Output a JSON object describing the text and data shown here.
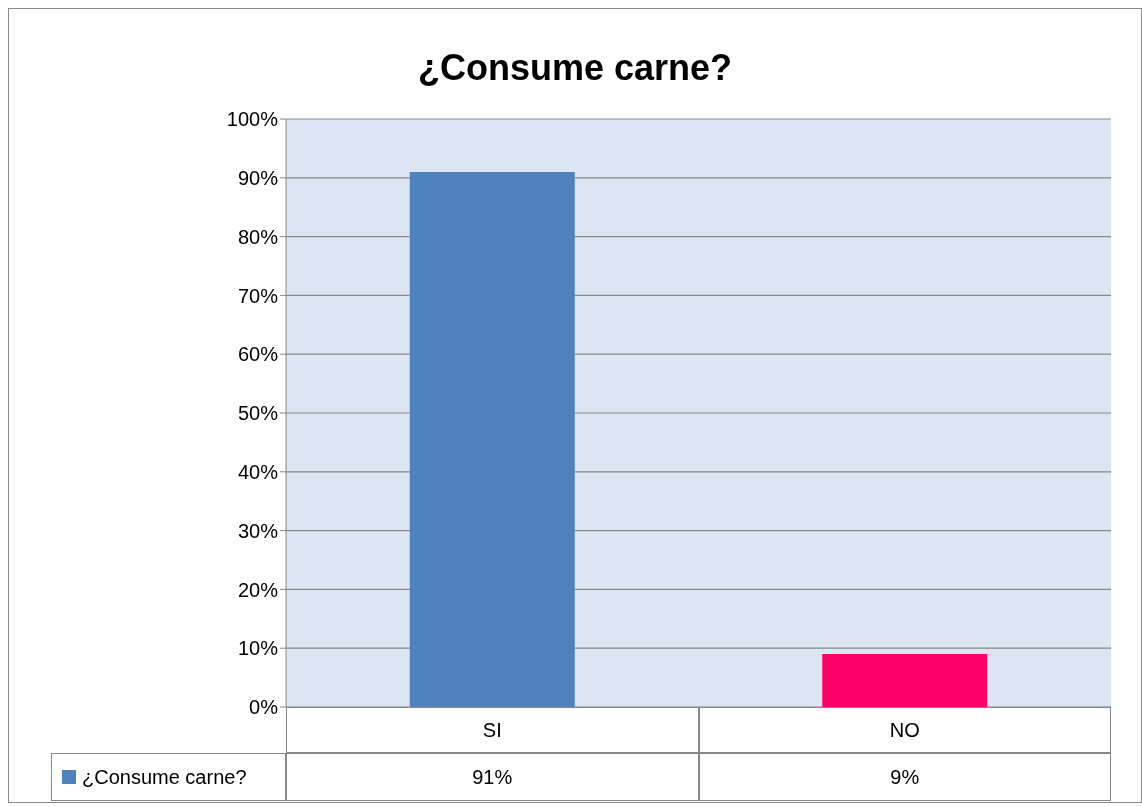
{
  "chart_data": {
    "type": "bar",
    "title": "¿Consume carne?",
    "categories": [
      "SI",
      "NO"
    ],
    "series": [
      {
        "name": "¿Consume carne?",
        "color": "#4f81bd",
        "colors": [
          "#4f81bd",
          "#ff0066"
        ],
        "values": [
          91,
          9
        ],
        "value_labels": [
          "91%",
          "9%"
        ]
      }
    ],
    "ylim": [
      0,
      100
    ],
    "yticks": [
      {
        "value": 0,
        "label": "0%"
      },
      {
        "value": 10,
        "label": "10%"
      },
      {
        "value": 20,
        "label": "20%"
      },
      {
        "value": 30,
        "label": "30%"
      },
      {
        "value": 40,
        "label": "40%"
      },
      {
        "value": 50,
        "label": "50%"
      },
      {
        "value": 60,
        "label": "60%"
      },
      {
        "value": 70,
        "label": "70%"
      },
      {
        "value": 80,
        "label": "80%"
      },
      {
        "value": 90,
        "label": "90%"
      },
      {
        "value": 100,
        "label": "100%"
      }
    ],
    "grid": "y",
    "legend": "bottom"
  }
}
